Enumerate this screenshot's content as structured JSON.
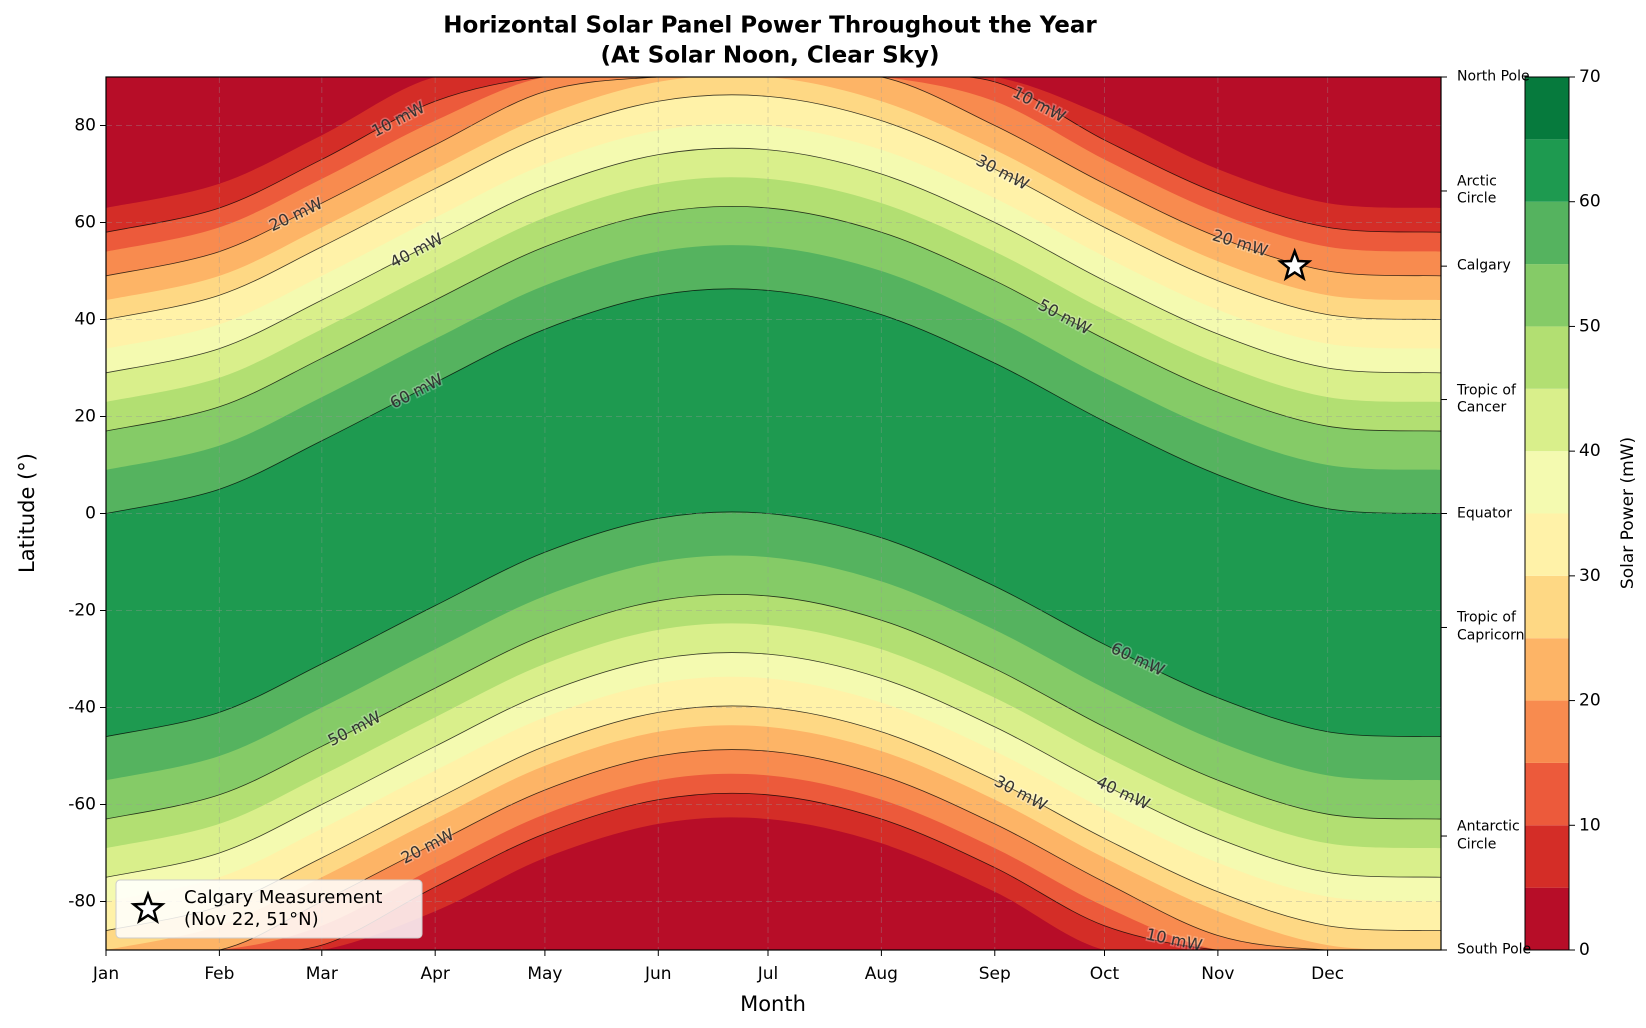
{
  "chart_data": {
    "type": "contourf",
    "title": "Horizontal Solar Panel Power Throughout the Year",
    "subtitle": "(At Solar Noon, Clear Sky)",
    "x_label": "Month",
    "y_label": "Latitude (°)",
    "x": [
      0,
      31,
      59,
      90,
      120,
      151,
      181,
      212,
      243,
      273,
      304,
      334,
      365
    ],
    "xlim": [
      0,
      365
    ],
    "xticks": [
      {
        "value": 0,
        "label": "Jan"
      },
      {
        "value": 31,
        "label": "Feb"
      },
      {
        "value": 59,
        "label": "Mar"
      },
      {
        "value": 90,
        "label": "Apr"
      },
      {
        "value": 120,
        "label": "May"
      },
      {
        "value": 151,
        "label": "Jun"
      },
      {
        "value": 181,
        "label": "Jul"
      },
      {
        "value": 212,
        "label": "Aug"
      },
      {
        "value": 243,
        "label": "Sep"
      },
      {
        "value": 273,
        "label": "Oct"
      },
      {
        "value": 304,
        "label": "Nov"
      },
      {
        "value": 334,
        "label": "Dec"
      }
    ],
    "ylim": [
      -90,
      90
    ],
    "yticks": [
      -80,
      -60,
      -40,
      -20,
      0,
      20,
      40,
      60,
      80
    ],
    "y2lim": [
      -90,
      90
    ],
    "y2ticks": [
      {
        "value": 90,
        "label": "North Pole"
      },
      {
        "value": 66.5,
        "label": "Arctic\nCircle"
      },
      {
        "value": 51,
        "label": "Calgary"
      },
      {
        "value": 23.5,
        "label": "Tropic of\nCancer"
      },
      {
        "value": 0,
        "label": "Equator"
      },
      {
        "value": -23.5,
        "label": "Tropic of\nCapricorn"
      },
      {
        "value": -66.5,
        "label": "Antarctic\nCircle"
      },
      {
        "value": -90,
        "label": "South Pole"
      }
    ],
    "grid": true,
    "line_color": "#000000",
    "levels": [
      {
        "value": 5,
        "upper": [
          63,
          68,
          78,
          90,
          90,
          90,
          90,
          90,
          90,
          82,
          71,
          64,
          63
        ],
        "lower": [
          -90,
          -90,
          -90,
          -82,
          -71,
          -64,
          -63,
          -68,
          -78,
          -90,
          -90,
          -90,
          -90
        ]
      },
      {
        "value": 10,
        "label": "10 mW",
        "upper": [
          58,
          63,
          73,
          85,
          90,
          90,
          90,
          90,
          89,
          77,
          66,
          59,
          58
        ],
        "lower": [
          -90,
          -90,
          -89,
          -77,
          -66,
          -59,
          -58,
          -63,
          -73,
          -85,
          -90,
          -90,
          -90
        ]
      },
      {
        "value": 15,
        "upper": [
          54,
          59,
          69,
          81,
          90,
          90,
          90,
          90,
          85,
          73,
          62,
          55,
          54
        ],
        "lower": [
          -90,
          -90,
          -85,
          -73,
          -62,
          -55,
          -54,
          -59,
          -69,
          -81,
          -90,
          -90,
          -90
        ]
      },
      {
        "value": 20,
        "label": "20 mW",
        "upper": [
          49,
          54,
          64,
          76,
          87,
          90,
          90,
          90,
          80,
          68,
          57,
          50,
          49
        ],
        "lower": [
          -90,
          -90,
          -80,
          -68,
          -57,
          -50,
          -49,
          -54,
          -64,
          -76,
          -87,
          -90,
          -90
        ]
      },
      {
        "value": 25,
        "upper": [
          44,
          49,
          59,
          71,
          82,
          89,
          90,
          85,
          75,
          63,
          52,
          45,
          44
        ],
        "lower": [
          -90,
          -85,
          -75,
          -63,
          -52,
          -45,
          -44,
          -49,
          -59,
          -71,
          -82,
          -89,
          -90
        ]
      },
      {
        "value": 30,
        "label": "30 mW",
        "upper": [
          40,
          45,
          55,
          67,
          78,
          85,
          86,
          81,
          71,
          59,
          48,
          41,
          40
        ],
        "lower": [
          -86,
          -81,
          -71,
          -59,
          -48,
          -41,
          -40,
          -45,
          -55,
          -67,
          -78,
          -85,
          -86
        ]
      },
      {
        "value": 35,
        "upper": [
          34,
          39,
          49,
          61,
          72,
          79,
          80,
          75,
          65,
          53,
          42,
          35,
          34
        ],
        "lower": [
          -80,
          -75,
          -65,
          -53,
          -42,
          -35,
          -34,
          -39,
          -49,
          -61,
          -72,
          -79,
          -80
        ]
      },
      {
        "value": 40,
        "label": "40 mW",
        "upper": [
          29,
          34,
          44,
          56,
          67,
          74,
          75,
          70,
          60,
          48,
          37,
          30,
          29
        ],
        "lower": [
          -75,
          -70,
          -60,
          -48,
          -37,
          -30,
          -29,
          -34,
          -44,
          -56,
          -67,
          -74,
          -75
        ]
      },
      {
        "value": 45,
        "upper": [
          23,
          28,
          38,
          50,
          61,
          68,
          69,
          64,
          54,
          42,
          31,
          24,
          23
        ],
        "lower": [
          -69,
          -64,
          -54,
          -42,
          -31,
          -24,
          -23,
          -28,
          -38,
          -50,
          -61,
          -68,
          -69
        ]
      },
      {
        "value": 50,
        "label": "50 mW",
        "upper": [
          17,
          22,
          32,
          44,
          55,
          62,
          63,
          58,
          48,
          36,
          25,
          18,
          17
        ],
        "lower": [
          -63,
          -58,
          -48,
          -36,
          -25,
          -18,
          -17,
          -22,
          -32,
          -44,
          -55,
          -62,
          -63
        ]
      },
      {
        "value": 55,
        "upper": [
          9,
          14,
          24,
          36,
          47,
          54,
          55,
          50,
          40,
          28,
          17,
          10,
          9
        ],
        "lower": [
          -55,
          -50,
          -40,
          -28,
          -17,
          -10,
          -9,
          -14,
          -24,
          -36,
          -47,
          -54,
          -55
        ]
      },
      {
        "value": 60,
        "label": "60 mW",
        "upper": [
          0,
          5,
          15,
          27,
          38,
          45,
          46,
          41,
          31,
          19,
          8,
          1,
          0
        ],
        "lower": [
          -46,
          -41,
          -31,
          -19,
          -8,
          -1,
          0,
          -5,
          -15,
          -27,
          -38,
          -45,
          -46
        ]
      }
    ],
    "colorbar": {
      "label": "Solar Power (mW)",
      "levels": [
        0,
        5,
        10,
        15,
        20,
        25,
        30,
        35,
        40,
        45,
        50,
        55,
        60,
        65,
        70
      ],
      "colors": [
        "#b70d28",
        "#d42d27",
        "#ec5a3b",
        "#f88b4f",
        "#fdb466",
        "#fed884",
        "#fff2a8",
        "#f4fab0",
        "#d9ef8b",
        "#b2df72",
        "#85cb67",
        "#55b35f",
        "#1e9a50",
        "#067a3d"
      ],
      "ticks": [
        0,
        10,
        20,
        30,
        40,
        50,
        60,
        70
      ]
    },
    "marker": {
      "name": "Calgary Measurement\n(Nov 22, 51°N)",
      "x": 325,
      "y": 51,
      "color": "#ffffff"
    },
    "legend": "lower left"
  }
}
